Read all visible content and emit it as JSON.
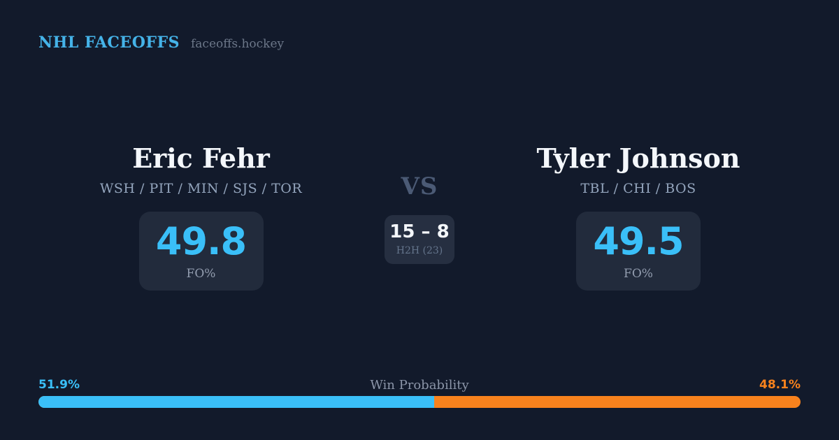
{
  "colors": {
    "background": "#121a2b",
    "card": "#222b3c",
    "h2h_card": "#262f41",
    "accent_blue": "#3abff8",
    "accent_orange": "#f8821d",
    "brand_blue": "#45b3e8",
    "text_white": "#f4f7fb",
    "text_slate": "#94a5bd",
    "text_muted": "#8b95a8",
    "vs_gray": "#4b5a75"
  },
  "header": {
    "brand": "NHL FACEOFFS",
    "site": "faceoffs.hockey"
  },
  "matchup": {
    "player_left": {
      "name": "Eric Fehr",
      "teams": "WSH / PIT / MIN / SJS / TOR",
      "stat_value": "49.8",
      "stat_label": "FO%"
    },
    "vs_label": "VS",
    "h2h": {
      "score": "15 – 8",
      "label": "H2H (23)"
    },
    "player_right": {
      "name": "Tyler Johnson",
      "teams": "TBL / CHI / BOS",
      "stat_value": "49.5",
      "stat_label": "FO%"
    }
  },
  "win_probability": {
    "title": "Win Probability",
    "left_pct": "51.9%",
    "right_pct": "48.1%",
    "left_value": 51.9,
    "right_value": 48.1
  }
}
